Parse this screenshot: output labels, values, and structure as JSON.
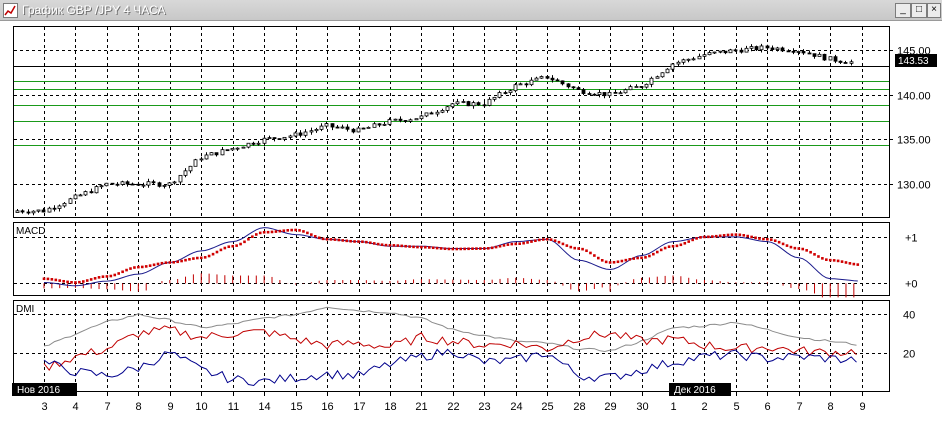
{
  "window": {
    "title": "График GBP /JPY  4 ЧАСА",
    "minimize_glyph": "_",
    "maximize_glyph": "□",
    "close_glyph": "×"
  },
  "price_panel": {
    "last_price": "143.53"
  },
  "indicators": {
    "macd_label": "MACD",
    "dmi_label": "DMI"
  },
  "months": [
    "Нов 2016",
    "Дек 2016"
  ],
  "chart_data": {
    "type": "candlestick",
    "title": "График GBP /JPY  4 ЧАСА",
    "price_axis": {
      "ylim": [
        126.3,
        147.6
      ],
      "ticks": [
        {
          "value": 145,
          "label": "145.00"
        },
        {
          "value": 140,
          "label": "140.00"
        },
        {
          "value": 135,
          "label": "135.00"
        },
        {
          "value": 130,
          "label": "130.00"
        }
      ]
    },
    "horizontal_levels": [
      143.2,
      141.6,
      140.6,
      138.8,
      137.1,
      134.4
    ],
    "x_axis": {
      "days": [
        "3",
        "4",
        "7",
        "8",
        "9",
        "10",
        "11",
        "14",
        "15",
        "16",
        "17",
        "18",
        "21",
        "22",
        "23",
        "24",
        "25",
        "28",
        "29",
        "30",
        "1",
        "2",
        "5",
        "6",
        "7",
        "8",
        "9"
      ],
      "months": [
        "Нов 2016",
        "Дек 2016"
      ],
      "month_start_index": [
        0,
        20
      ]
    },
    "price_series": {
      "name": "GBP/JPY",
      "close_by_day": [
        127.0,
        128.5,
        130.0,
        130.0,
        130.0,
        133.0,
        134.0,
        135.0,
        135.5,
        136.5,
        136.0,
        137.0,
        137.5,
        139.0,
        139.0,
        141.0,
        142.0,
        140.5,
        140.0,
        141.0,
        143.5,
        144.5,
        145.0,
        145.3,
        145.0,
        144.0,
        143.5
      ]
    },
    "macd": {
      "label": "MACD",
      "ylim": [
        -0.25,
        1.3
      ],
      "ticks": [
        {
          "value": 1,
          "label": "+1"
        },
        {
          "value": 0,
          "label": "+0"
        }
      ],
      "macd_by_day": [
        0.02,
        -0.05,
        0.05,
        0.2,
        0.45,
        0.7,
        0.9,
        1.2,
        1.05,
        0.95,
        0.9,
        0.8,
        0.8,
        0.75,
        0.75,
        0.9,
        0.95,
        0.5,
        0.3,
        0.6,
        0.9,
        1.0,
        1.0,
        0.9,
        0.55,
        0.1,
        0.05
      ],
      "signal_by_day": [
        0.1,
        0.02,
        0.15,
        0.35,
        0.45,
        0.55,
        0.8,
        1.1,
        1.15,
        0.95,
        0.9,
        0.82,
        0.78,
        0.74,
        0.75,
        0.85,
        0.95,
        0.75,
        0.45,
        0.55,
        0.8,
        1.0,
        1.05,
        0.95,
        0.75,
        0.5,
        0.4
      ]
    },
    "dmi": {
      "label": "DMI",
      "ylim": [
        0,
        47
      ],
      "ticks": [
        {
          "value": 40,
          "label": "40"
        },
        {
          "value": 20,
          "label": "20"
        }
      ],
      "plus_di_by_day": [
        15,
        10,
        8,
        12,
        20,
        11,
        6,
        5,
        7,
        9,
        8,
        14,
        18,
        21,
        15,
        16,
        20,
        8,
        7,
        11,
        15,
        18,
        19,
        17,
        18,
        17,
        16
      ],
      "minus_di_by_day": [
        12,
        18,
        22,
        30,
        32,
        28,
        30,
        31,
        27,
        24,
        25,
        23,
        28,
        26,
        24,
        25,
        22,
        28,
        30,
        26,
        27,
        24,
        22,
        23,
        21,
        20,
        21
      ],
      "adx_by_day": [
        23,
        30,
        36,
        40,
        37,
        33,
        35,
        38,
        40,
        44,
        42,
        41,
        38,
        32,
        29,
        26,
        25,
        22,
        21,
        26,
        33,
        34,
        36,
        32,
        28,
        26,
        24
      ]
    }
  }
}
